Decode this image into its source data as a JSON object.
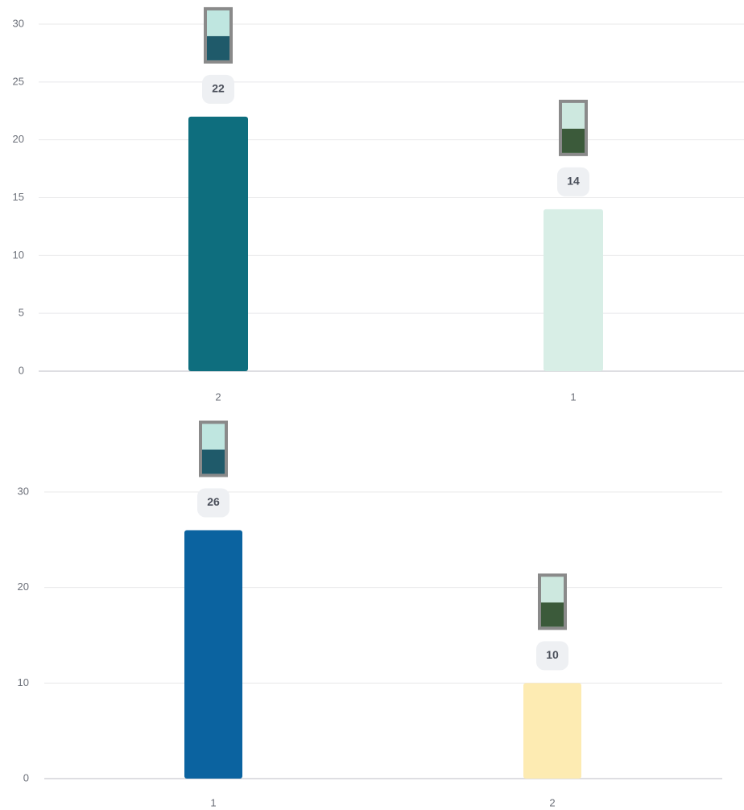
{
  "chart_data": [
    {
      "type": "bar",
      "categories": [
        "2",
        "1"
      ],
      "values": [
        22,
        14
      ],
      "colors": [
        "#0e6e7e",
        "#d8eee6"
      ],
      "ylim": [
        0,
        30
      ],
      "yticks": [
        0,
        5,
        10,
        15,
        20,
        25,
        30
      ],
      "grid": true
    },
    {
      "type": "bar",
      "categories": [
        "1",
        "2"
      ],
      "values": [
        26,
        10
      ],
      "colors": [
        "#0b63a0",
        "#fdebb2"
      ],
      "ylim": [
        0,
        30
      ],
      "yticks": [
        0,
        10,
        20,
        30
      ],
      "grid": true
    }
  ]
}
